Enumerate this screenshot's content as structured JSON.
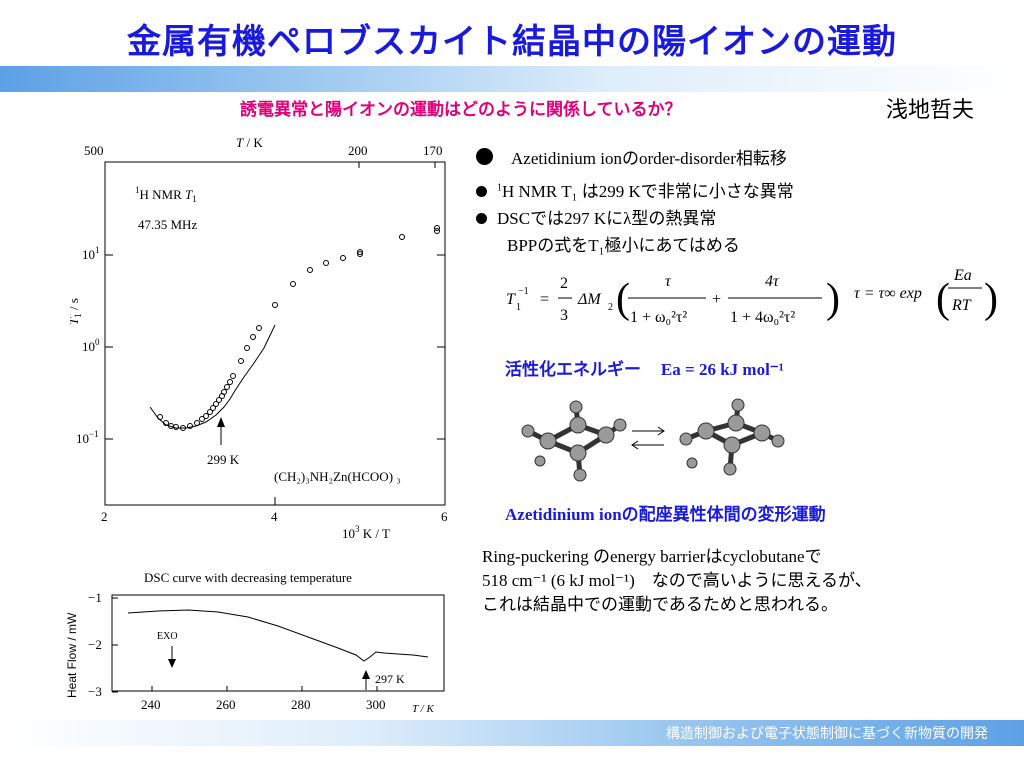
{
  "title": "金属有機ペロブスカイト結晶中の陽イオンの運動",
  "subtitle": "誘電異常と陽イオンの運動はどのように関係しているか？",
  "author": "浅地哲夫",
  "nmr_plot": {
    "top_axis_label_T": "T",
    "top_axis_label_unit": " / K",
    "top_ticks": [
      "500",
      "200",
      "170"
    ],
    "y_label": "T",
    "y_label_sub": "1",
    "y_label_unit": " / s",
    "y_ticks": [
      {
        "base": "10",
        "exp": "1"
      },
      {
        "base": "10",
        "exp": "0"
      },
      {
        "base": "10",
        "exp": "−1"
      }
    ],
    "x_ticks": [
      "2",
      "4",
      "6"
    ],
    "x_label_pre": "10",
    "x_label_exp": "3",
    "x_label_post": " K / T",
    "legend_sup": "1",
    "legend_main": "H NMR ",
    "legend_T": "T",
    "legend_sub": "1",
    "legend_freq": "47.35 MHz",
    "arrow_label": "299 K",
    "compound": "(CH₂)₃NH₂Zn(HCOO) ₃"
  },
  "dsc_plot": {
    "title": "DSC curve with decreasing temperature",
    "y_label": "Heat Flow / mW",
    "y_ticks": [
      "−1",
      "−2",
      "−3"
    ],
    "x_ticks": [
      "240",
      "260",
      "280",
      "300"
    ],
    "x_unit": "T / K",
    "exo_label": "EXO",
    "arrow_label": "297 K"
  },
  "bullets": {
    "b1": "Azetidinium ionのorder-disorder相転移",
    "b2_sup": "1",
    "b2": "H NMR T₁ は299 Kで非常に小さな異常",
    "b3": "DSCでは297 Kにλ型の熱異常",
    "b4": "BPPの式をT₁極小にあてはめる"
  },
  "formula": {
    "lhs_T": "T",
    "lhs_sub": "1",
    "lhs_sup": "−1",
    "eq": "=",
    "coef_num": "2",
    "coef_den": "3",
    "dM": "ΔM",
    "dM_sub": "2",
    "t1_num": "τ",
    "t1_den": "1 + ω₀²τ²",
    "plus": "+",
    "t2_num": "4τ",
    "t2_den": "1 + 4ω₀²τ²",
    "tau_lhs": "τ = τ∞ exp",
    "ea_num": "Ea",
    "ea_den": "RT"
  },
  "activation": {
    "label": "活性化エネルギー",
    "value": "Ea = 26 kJ mol⁻¹"
  },
  "caption": "Azetidinium ionの配座異性体間の変形運動",
  "paragraph": {
    "line1": "Ring-puckering のenergy barrierはcyclobutaneで",
    "line2": "518 cm⁻¹ (6 kJ mol⁻¹)　なので高いように思えるが、",
    "line3": "これは結晶中での運動であるためと思われる。"
  },
  "footer": "構造制御および電子状態制御に基づく新物質の開発",
  "colors": {
    "title": "#1a1adc",
    "subtitle": "#e0007a",
    "accent_blue": "#1a1adc",
    "bar": "#5da0e6"
  }
}
